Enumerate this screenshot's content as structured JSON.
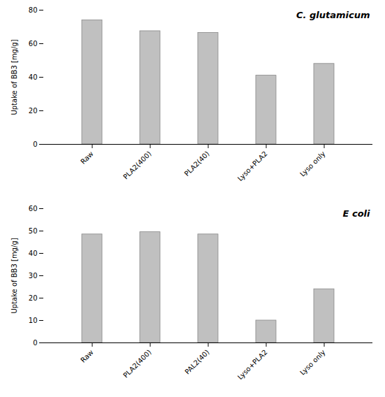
{
  "chart_data": [
    {
      "type": "bar",
      "categories": [
        "Raw",
        "PLA2(400)",
        "PLA2(40)",
        "Lyso+PLA2",
        "Lyso only"
      ],
      "values": [
        74,
        67.5,
        66.5,
        41,
        48
      ],
      "y_label": "Uptake of BB3 [mg/g]",
      "ylim": [
        0,
        80
      ],
      "yticks": [
        0,
        20,
        40,
        60,
        80
      ],
      "annotation": "C. glutamicum",
      "color": "#c0c0c0"
    },
    {
      "type": "bar",
      "categories": [
        "Raw",
        "PLA2(400)",
        "PAL2(40)",
        "Lyso+PLA2",
        "Lyso only"
      ],
      "values": [
        48.5,
        49.5,
        48.5,
        10,
        24
      ],
      "y_label": "Uptake of BB3 [mg/g]",
      "ylim": [
        0,
        60
      ],
      "yticks": [
        0,
        10,
        20,
        30,
        40,
        50,
        60
      ],
      "annotation": "E coli",
      "color": "#c0c0c0"
    }
  ]
}
